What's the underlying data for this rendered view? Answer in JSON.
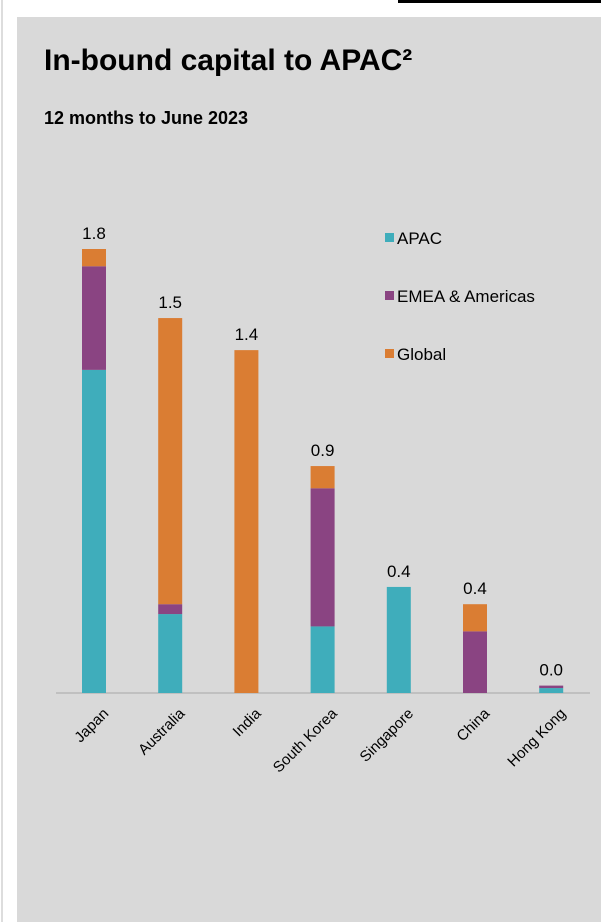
{
  "chart_data": {
    "type": "stacked_bar",
    "title": "In-bound capital to APAC²",
    "subtitle": "12 months to June 2023",
    "categories": [
      "Japan",
      "Australia",
      "India",
      "South Korea",
      "Singapore",
      "China",
      "Hong Kong"
    ],
    "series": [
      {
        "name": "APAC",
        "color": "#3fadbb",
        "values": [
          1.31,
          0.32,
          0,
          0.27,
          0.43,
          0,
          0.02
        ]
      },
      {
        "name": "EMEA & Americas",
        "color": "#8a4482",
        "values": [
          0.42,
          0.04,
          0,
          0.56,
          0,
          0.25,
          0.01
        ]
      },
      {
        "name": "Global",
        "color": "#da7d33",
        "values": [
          0.07,
          1.16,
          1.39,
          0.09,
          0,
          0.11,
          0
        ]
      }
    ],
    "total_labels": [
      "1.8",
      "1.5",
      "1.4",
      "0.9",
      "0.4",
      "0.4",
      "0.0"
    ],
    "legend": "upper right"
  }
}
